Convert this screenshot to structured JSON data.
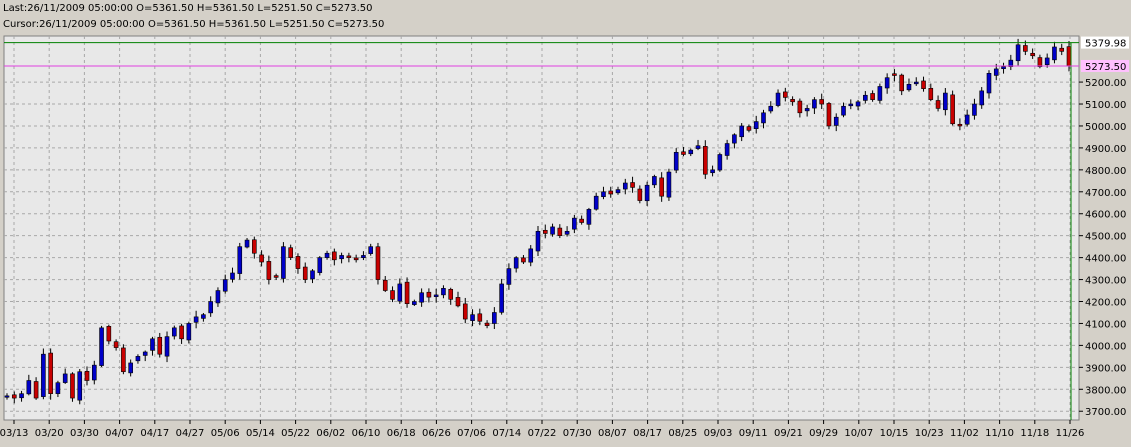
{
  "info": {
    "last": "Last:26/11/2009 05:00:00 O=5361.50 H=5361.50 L=5251.50 C=5273.50",
    "cursor": "Cursor:26/11/2009 05:00:00 O=5361.50 H=5361.50 L=5251.50 C=5273.50"
  },
  "colors": {
    "up": "#0000c8",
    "down": "#c80000",
    "wick": "#000000",
    "grid": "#a8a8a8",
    "plot_bg": "#e8e8e8",
    "high_line": "#008000",
    "price_line": "#e040e0",
    "high_label_bg": "#ffffff",
    "price_label_bg": "#ffc0ff"
  },
  "chart_data": {
    "type": "candlestick",
    "ylim": [
      3660,
      5410
    ],
    "y_ticks": [
      "3700.00",
      "3800.00",
      "3900.00",
      "4000.00",
      "4100.00",
      "4200.00",
      "4300.00",
      "4400.00",
      "4500.00",
      "4600.00",
      "4700.00",
      "4800.00",
      "4900.00",
      "5000.00",
      "5100.00",
      "5200.00"
    ],
    "x_ticks": [
      "03/13",
      "03/20",
      "03/30",
      "04/07",
      "04/17",
      "04/27",
      "05/06",
      "05/14",
      "05/22",
      "06/02",
      "06/10",
      "06/18",
      "06/26",
      "07/06",
      "07/14",
      "07/22",
      "07/30",
      "08/07",
      "08/17",
      "08/25",
      "09/03",
      "09/11",
      "09/21",
      "09/29",
      "10/07",
      "10/15",
      "10/23",
      "11/02",
      "11/10",
      "11/18",
      "11/26"
    ],
    "high_label": "5379.98",
    "price_label": "5273.50",
    "high_value": 5379.98,
    "last_value": 5273.5,
    "closes": [
      3770,
      3760,
      3780,
      3840,
      3760,
      3960,
      3780,
      3830,
      3870,
      3760,
      3880,
      3840,
      3910,
      4080,
      4020,
      3990,
      3880,
      3920,
      3950,
      3970,
      4030,
      3960,
      4040,
      4080,
      4030,
      4100,
      4130,
      4140,
      4200,
      4250,
      4300,
      4330,
      4450,
      4480,
      4420,
      4380,
      4300,
      4310,
      4450,
      4400,
      4350,
      4300,
      4340,
      4400,
      4420,
      4390,
      4410,
      4400,
      4390,
      4410,
      4450,
      4300,
      4250,
      4210,
      4280,
      4190,
      4200,
      4240,
      4220,
      4230,
      4260,
      4210,
      4180,
      4120,
      4140,
      4110,
      4090,
      4150,
      4280,
      4350,
      4400,
      4380,
      4440,
      4520,
      4510,
      4540,
      4500,
      4520,
      4580,
      4560,
      4620,
      4680,
      4700,
      4690,
      4710,
      4740,
      4720,
      4660,
      4730,
      4770,
      4680,
      4790,
      4880,
      4870,
      4890,
      4910,
      4780,
      4800,
      4870,
      4920,
      4960,
      5000,
      4980,
      5020,
      5060,
      5090,
      5150,
      5130,
      5110,
      5060,
      5080,
      5120,
      5100,
      5000,
      5040,
      5090,
      5100,
      5110,
      5140,
      5120,
      5180,
      5220,
      5230,
      5160,
      5190,
      5200,
      5170,
      5120,
      5080,
      5150,
      5010,
      5000,
      5050,
      5100,
      5160,
      5240,
      5260,
      5270,
      5300,
      5370,
      5340,
      5320,
      5270,
      5310,
      5360,
      5340,
      5273.5
    ],
    "series": [
      {
        "values": []
      }
    ]
  }
}
